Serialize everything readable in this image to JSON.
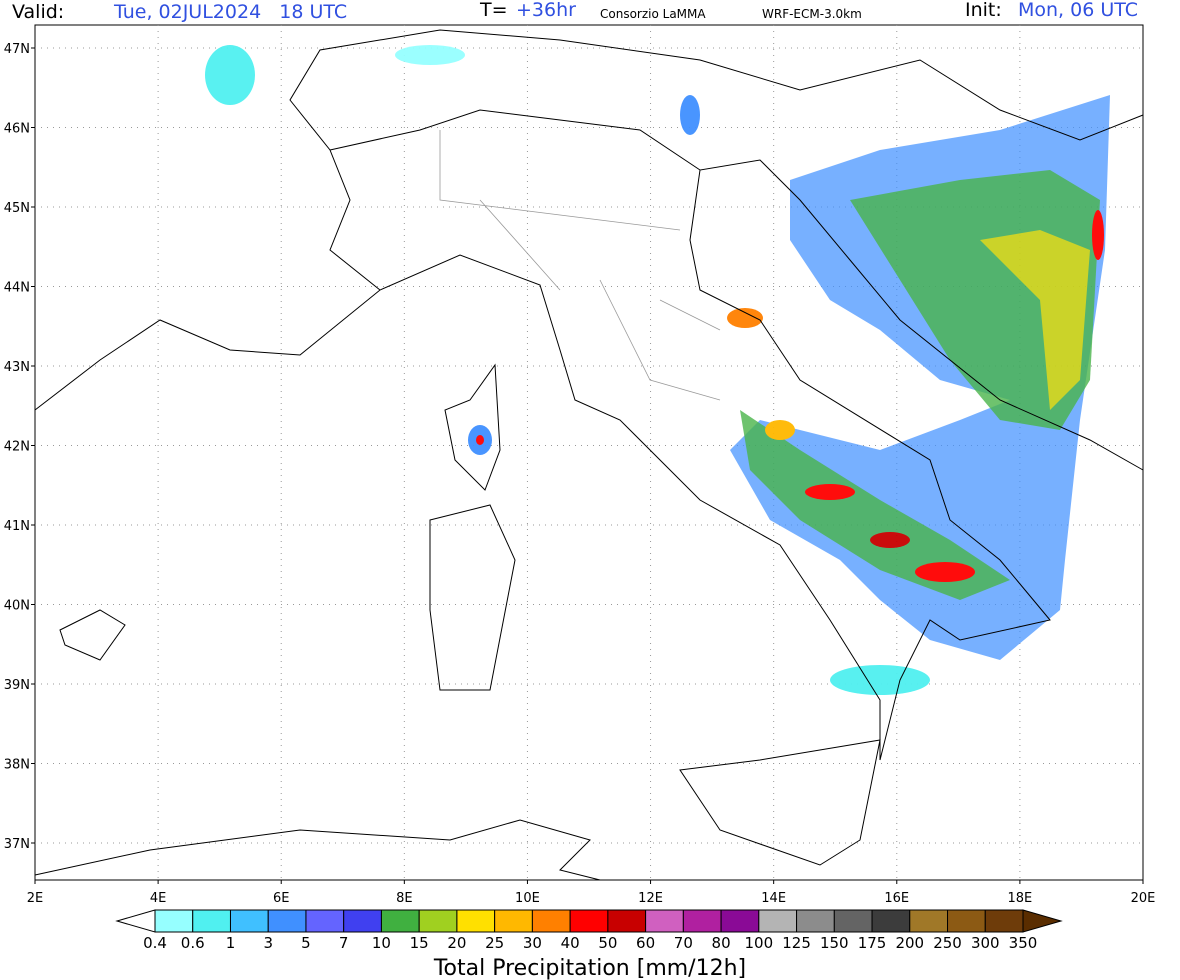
{
  "header": {
    "valid_label": "Valid:",
    "valid_time": "Tue, 02JUL2024   18 UTC",
    "lead_label": "T=",
    "lead_time": "+36hr",
    "producer": "Consorzio LaMMA",
    "model": "WRF-ECM-3.0km",
    "init_label": "Init:",
    "init_time": "Mon, 06 UTC"
  },
  "map": {
    "lat_labels": [
      "47N",
      "46N",
      "45N",
      "44N",
      "43N",
      "42N",
      "41N",
      "40N",
      "39N",
      "38N",
      "37N"
    ],
    "lon_labels": [
      "2E",
      "4E",
      "6E",
      "8E",
      "10E",
      "12E",
      "14E",
      "16E",
      "18E",
      "20E"
    ]
  },
  "legend": {
    "title": "Total Precipitation [mm/12h]",
    "labels": [
      "0.4",
      "0.6",
      "1",
      "3",
      "5",
      "7",
      "10",
      "15",
      "20",
      "25",
      "30",
      "40",
      "50",
      "60",
      "70",
      "80",
      "100",
      "125",
      "150",
      "175",
      "200",
      "250",
      "300",
      "350"
    ],
    "colors": [
      "#96ffff",
      "#50f0f0",
      "#40c0ff",
      "#4090ff",
      "#6464ff",
      "#4040f0",
      "#40b040",
      "#a0d020",
      "#ffe000",
      "#ffb800",
      "#ff8000",
      "#ff0000",
      "#c80000",
      "#d060c0",
      "#b020a0",
      "#8a0a96",
      "#b4b4b4",
      "#8c8c8c",
      "#646464",
      "#3c3c3c",
      "#a07828",
      "#8c5a14",
      "#6e3c0a"
    ],
    "under_color": "#ffffff",
    "over_color": "#5a2d00"
  }
}
